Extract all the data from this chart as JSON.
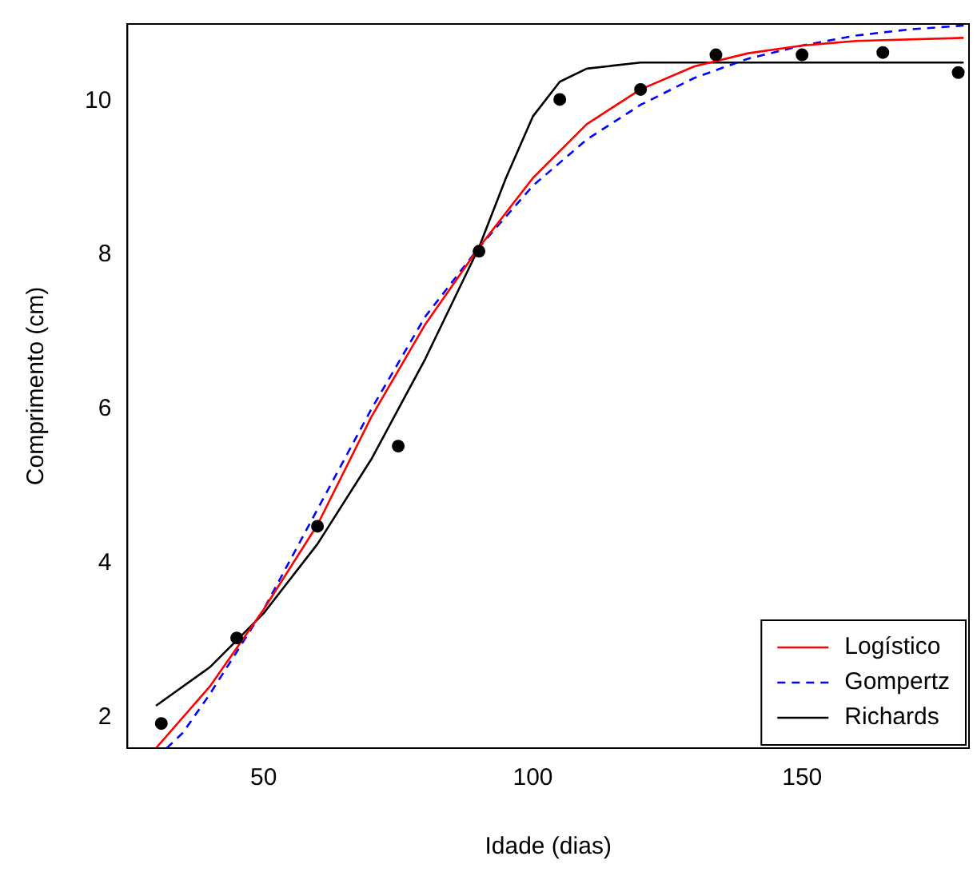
{
  "chart_data": {
    "type": "scatter",
    "xlabel": "Idade (dias)",
    "ylabel": "Comprimento (cm)",
    "xlim": [
      24.7,
      181
    ],
    "ylim": [
      1.6,
      11
    ],
    "xticks": [
      50,
      100,
      150
    ],
    "yticks": [
      2,
      4,
      6,
      8,
      10
    ],
    "grid": false,
    "legend": "bottom right",
    "series": [
      {
        "color": "#000000",
        "marker": "circle",
        "x": [
          31,
          45,
          60,
          75,
          90,
          105,
          120,
          134,
          150,
          165,
          179
        ],
        "values": [
          1.92,
          3.03,
          4.48,
          5.52,
          8.05,
          10.02,
          10.15,
          10.6,
          10.6,
          10.63,
          10.37
        ]
      },
      {
        "type": "line",
        "name": "Logístico",
        "color": "#ff0000",
        "line_style": "solid",
        "x": [
          30,
          40,
          50,
          60,
          70,
          80,
          90,
          100,
          110,
          120,
          130,
          140,
          150,
          160,
          180
        ],
        "values": [
          1.6,
          2.4,
          3.4,
          4.5,
          5.9,
          7.1,
          8.1,
          9.0,
          9.7,
          10.15,
          10.45,
          10.62,
          10.72,
          10.78,
          10.82
        ]
      },
      {
        "type": "line",
        "name": "Gompertz",
        "color": "#0000ff",
        "line_style": "dashed",
        "x": [
          32,
          35,
          40,
          50,
          60,
          70,
          80,
          90,
          100,
          110,
          120,
          130,
          140,
          150,
          160,
          170,
          180
        ],
        "values": [
          1.6,
          1.8,
          2.3,
          3.4,
          4.7,
          6.0,
          7.2,
          8.1,
          8.9,
          9.5,
          9.95,
          10.3,
          10.55,
          10.72,
          10.85,
          10.93,
          10.98
        ]
      },
      {
        "type": "line",
        "name": "Richards",
        "color": "#000000",
        "line_style": "solid",
        "x": [
          30,
          40,
          50,
          60,
          70,
          80,
          90,
          95,
          100,
          105,
          110,
          120,
          140,
          180
        ],
        "values": [
          2.15,
          2.65,
          3.35,
          4.25,
          5.35,
          6.65,
          8.1,
          9.0,
          9.8,
          10.25,
          10.42,
          10.5,
          10.5,
          10.5
        ]
      }
    ]
  }
}
